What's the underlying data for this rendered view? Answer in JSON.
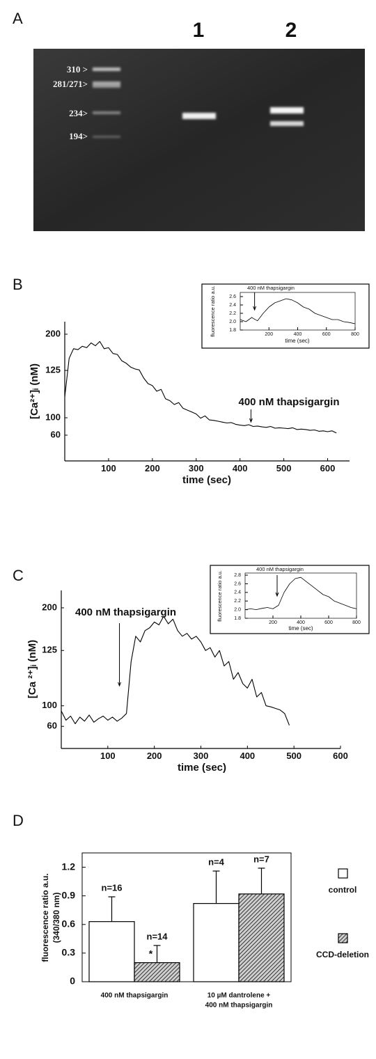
{
  "gel": {
    "panel": "A",
    "lanes": [
      "1",
      "2"
    ],
    "markers": [
      "310 >",
      "281/271>",
      "234>",
      "194>"
    ]
  },
  "chart_data": [
    {
      "type": "line",
      "panel": "B",
      "x_label": "time (sec)",
      "y_label": "[Ca²⁺]ᵢ  (nM)",
      "annotation": "400 nM thapsigargin",
      "annotation_x": 425,
      "color": "#000000",
      "xlim": [
        0,
        650
      ],
      "xticks": [
        100,
        200,
        300,
        400,
        500,
        600
      ],
      "ylim": [
        50,
        215
      ],
      "yticks": [
        60,
        100,
        125,
        200
      ],
      "x": [
        0,
        10,
        20,
        30,
        40,
        50,
        60,
        70,
        80,
        90,
        100,
        110,
        120,
        130,
        140,
        150,
        160,
        170,
        180,
        190,
        200,
        210,
        220,
        230,
        240,
        250,
        260,
        270,
        280,
        290,
        300,
        310,
        320,
        330,
        340,
        350,
        360,
        370,
        380,
        390,
        400,
        410,
        420,
        430,
        440,
        450,
        460,
        470,
        480,
        490,
        500,
        510,
        520,
        530,
        540,
        550,
        560,
        570,
        580,
        590,
        600,
        610,
        620
      ],
      "values": [
        111,
        150,
        170,
        168,
        175,
        172,
        182,
        176,
        185,
        170,
        172,
        160,
        158,
        145,
        140,
        132,
        128,
        126,
        121,
        118,
        117,
        114,
        115,
        110,
        109,
        107,
        108,
        105,
        104,
        103,
        102,
        99,
        101,
        95,
        94,
        92,
        90,
        88,
        89,
        85,
        83,
        82,
        84,
        80,
        81,
        79,
        78,
        80,
        76,
        77,
        76,
        75,
        77,
        73,
        74,
        73,
        71,
        72,
        69,
        70,
        68,
        70,
        65
      ]
    },
    {
      "type": "line",
      "x_label": "time (sec)",
      "y_label": "fluorescence ratio a.u.",
      "annotation": "400 nM thapsigargin",
      "annotation_x": 100,
      "color": "#000000",
      "xlim": [
        0,
        800
      ],
      "xticks": [
        200,
        400,
        600,
        800
      ],
      "ylim": [
        1.8,
        2.7
      ],
      "yticks": [
        1.8,
        {
          "value": 2,
          "label": "2.0"
        },
        2.2,
        2.4,
        2.6
      ],
      "x": [
        0,
        40,
        80,
        120,
        160,
        200,
        240,
        280,
        320,
        360,
        400,
        440,
        480,
        520,
        560,
        600,
        640,
        680,
        720,
        760,
        800
      ],
      "values": [
        2.05,
        2.0,
        2.1,
        2.02,
        2.2,
        2.35,
        2.45,
        2.5,
        2.55,
        2.52,
        2.45,
        2.35,
        2.3,
        2.2,
        2.15,
        2.1,
        2.05,
        2.05,
        2.0,
        1.98,
        1.95
      ]
    },
    {
      "type": "line",
      "panel": "C",
      "x_label": "time (sec)",
      "y_label": "[Ca ²⁺]ᵢ  (nM)",
      "annotation": "400 nM thapsigargin",
      "annotation_x": 125,
      "color": "#000000",
      "xlim": [
        0,
        600
      ],
      "xticks": [
        100,
        200,
        300,
        400,
        500,
        600
      ],
      "ylim": [
        50,
        215
      ],
      "yticks": [
        60,
        100,
        125,
        200
      ],
      "x": [
        0,
        10,
        20,
        30,
        40,
        50,
        60,
        70,
        80,
        90,
        100,
        110,
        120,
        130,
        140,
        150,
        160,
        170,
        180,
        190,
        200,
        210,
        220,
        230,
        240,
        250,
        260,
        270,
        280,
        290,
        300,
        310,
        320,
        330,
        340,
        350,
        360,
        370,
        380,
        390,
        400,
        410,
        420,
        430,
        440,
        450,
        460,
        470,
        480,
        490
      ],
      "values": [
        90,
        72,
        80,
        65,
        78,
        70,
        82,
        68,
        75,
        80,
        72,
        78,
        70,
        76,
        85,
        120,
        150,
        140,
        160,
        165,
        175,
        170,
        185,
        172,
        180,
        160,
        150,
        155,
        145,
        150,
        140,
        125,
        130,
        122,
        125,
        118,
        120,
        112,
        115,
        110,
        108,
        112,
        104,
        106,
        100,
        98,
        95,
        92,
        85,
        62
      ]
    },
    {
      "type": "line",
      "x_label": "time (sec)",
      "y_label": "fluorescence ratio a.u.",
      "annotation": "400 nM thapsigargin",
      "annotation_x": 230,
      "color": "#000000",
      "xlim": [
        0,
        800
      ],
      "xticks": [
        200,
        400,
        600,
        800
      ],
      "ylim": [
        1.8,
        2.85
      ],
      "yticks": [
        1.8,
        {
          "value": 2,
          "label": "2.0"
        },
        2.2,
        2.4,
        2.6,
        2.8
      ],
      "x": [
        0,
        40,
        80,
        120,
        160,
        200,
        240,
        280,
        320,
        360,
        400,
        440,
        480,
        520,
        560,
        600,
        640,
        680,
        720,
        760,
        800
      ],
      "values": [
        2.0,
        2.02,
        2.0,
        2.03,
        2.05,
        2.02,
        2.1,
        2.4,
        2.6,
        2.72,
        2.75,
        2.65,
        2.55,
        2.45,
        2.35,
        2.3,
        2.2,
        2.15,
        2.1,
        2.05,
        2.02
      ]
    },
    {
      "type": "bar",
      "panel": "D",
      "y_label": [
        "fluorescence ratio a.u.",
        "(340/380 nm)"
      ],
      "categories": [
        [
          "400 nM thapsigargin"
        ],
        [
          "10 µM dantrolene +",
          "400 nM thapsigargin"
        ]
      ],
      "ylim": [
        0,
        1.35
      ],
      "yticks": [
        0,
        0.3,
        0.6,
        0.9,
        1.2
      ],
      "series": [
        {
          "name": "control",
          "color": "#ffffff",
          "values": [
            0.63,
            0.82
          ],
          "errors": [
            0.26,
            0.34
          ],
          "n_labels": [
            "n=16",
            "n=4"
          ]
        },
        {
          "name": "CCD-deletion",
          "color": "#333333",
          "pattern": "hatch",
          "values": [
            0.2,
            0.92
          ],
          "errors": [
            0.18,
            0.27
          ],
          "n_labels": [
            "n=14",
            "n=7"
          ],
          "sig_labels": [
            "*",
            null
          ]
        }
      ]
    }
  ]
}
